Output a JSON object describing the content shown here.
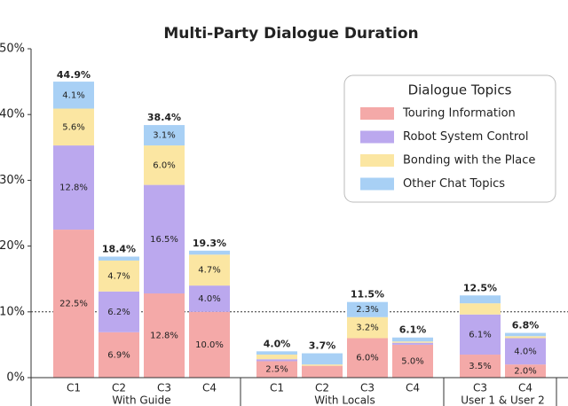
{
  "chart_data": {
    "type": "stacked_bar",
    "title": "Multi-Party Dialogue Duration",
    "groups": [
      {
        "name": "With Guide",
        "categories": [
          "C1",
          "C2",
          "C3",
          "C4"
        ]
      },
      {
        "name": "With Locals",
        "categories": [
          "C1",
          "C2",
          "C3",
          "C4"
        ]
      },
      {
        "name": "User 1 & User 2",
        "categories": [
          "C3",
          "C4"
        ]
      }
    ],
    "series": [
      {
        "name": "Touring Information",
        "color": "#f4a9a8",
        "values": [
          22.5,
          6.9,
          12.8,
          10.0,
          2.5,
          1.8,
          6.0,
          5.0,
          3.5,
          2.0
        ],
        "value_labels": [
          "22.5%",
          "6.9%",
          "12.8%",
          "10.0%",
          "2.5%",
          null,
          "6.0%",
          "5.0%",
          "3.5%",
          "2.0%"
        ]
      },
      {
        "name": "Robot System Control",
        "color": "#bba8ee",
        "values": [
          12.8,
          6.2,
          16.5,
          4.0,
          0.3,
          0,
          0,
          0.3,
          6.1,
          4.0
        ],
        "value_labels": [
          "12.8%",
          "6.2%",
          "16.5%",
          "4.0%",
          null,
          null,
          null,
          null,
          "6.1%",
          "4.0%"
        ]
      },
      {
        "name": "Bonding with the Place",
        "color": "#fbe6a2",
        "values": [
          5.6,
          4.7,
          6.0,
          4.7,
          0.7,
          0.2,
          3.2,
          0.2,
          1.7,
          0.3
        ],
        "value_labels": [
          "5.6%",
          "4.7%",
          "6.0%",
          "4.7%",
          null,
          null,
          "3.2%",
          null,
          null,
          null
        ]
      },
      {
        "name": "Other Chat Topics",
        "color": "#a8d0f5",
        "values": [
          4.1,
          0.6,
          3.1,
          0.6,
          0.5,
          1.7,
          2.3,
          0.6,
          1.2,
          0.5
        ],
        "value_labels": [
          "4.1%",
          null,
          "3.1%",
          null,
          null,
          null,
          "2.3%",
          null,
          null,
          null
        ]
      }
    ],
    "totals": [
      44.9,
      18.4,
      38.4,
      19.3,
      4.0,
      3.7,
      11.5,
      6.1,
      12.5,
      6.8
    ],
    "total_labels": [
      "44.9%",
      "18.4%",
      "38.4%",
      "19.3%",
      "4.0%",
      "3.7%",
      "11.5%",
      "6.1%",
      "12.5%",
      "6.8%"
    ],
    "ylim": [
      0,
      50
    ],
    "yticks": [
      {
        "value": 0,
        "label": "0%"
      },
      {
        "value": 10,
        "label": "10%"
      },
      {
        "value": 20,
        "label": "20%"
      },
      {
        "value": 30,
        "label": "30%"
      },
      {
        "value": 40,
        "label": "40%"
      },
      {
        "value": 50,
        "label": "50%"
      }
    ],
    "reference_line": 10,
    "legend_title": "Dialogue Topics",
    "legend_position": "upper right"
  }
}
